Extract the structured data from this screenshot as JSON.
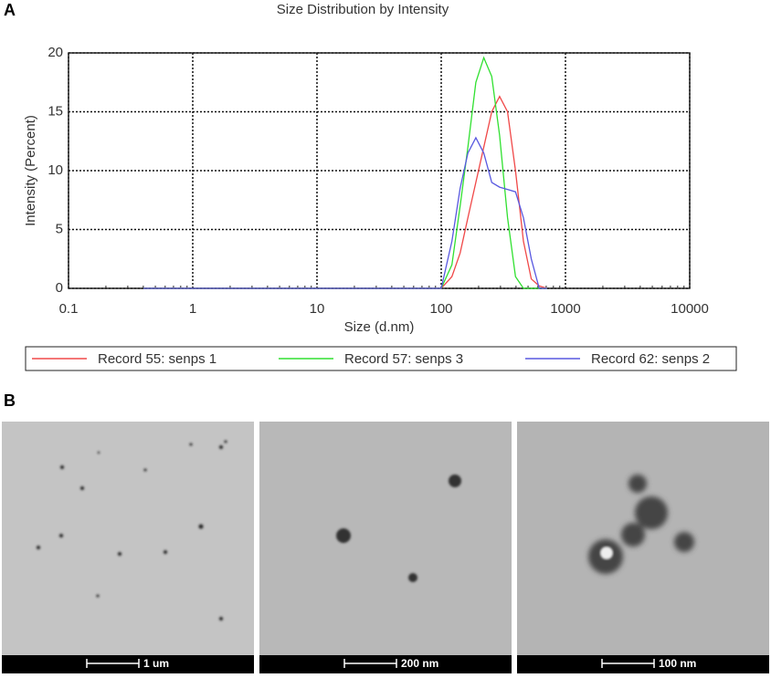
{
  "panel_labels": [
    "A",
    "B"
  ],
  "chart_data": {
    "type": "line",
    "title": "Size Distribution by Intensity",
    "x_label": "Size (d.nm)",
    "y_label": "Intensity (Percent)",
    "x": [
      0.4,
      100,
      122,
      142,
      164,
      190,
      220,
      255,
      295,
      342,
      396,
      459,
      531,
      615,
      712
    ],
    "series": [
      {
        "name": "Record 55: senps 1",
        "color": "#f04848",
        "values": [
          0,
          0,
          1,
          3,
          6,
          9,
          12,
          15,
          16.3,
          15,
          10,
          4,
          0.8,
          0.2,
          0
        ]
      },
      {
        "name": "Record 57: senps 3",
        "color": "#30e030",
        "values": [
          0,
          0,
          2,
          7,
          12,
          17.5,
          19.6,
          18,
          13,
          6,
          1,
          0,
          0,
          0,
          0
        ]
      },
      {
        "name": "Record 62: senps 2",
        "color": "#5858e0",
        "values": [
          0,
          0,
          4,
          8.5,
          11.5,
          12.8,
          11.5,
          9,
          8.6,
          8.4,
          8.2,
          6,
          2.5,
          0,
          0
        ]
      }
    ],
    "xlim": [
      0.1,
      10000
    ],
    "xticks": [
      0.1,
      1,
      10,
      100,
      1000,
      10000
    ],
    "log_x": true,
    "ylim": [
      0,
      20
    ],
    "yticks": [
      0,
      5,
      10,
      15,
      20
    ],
    "grid": true
  },
  "micrographs": {
    "scale_bars": [
      "1 um",
      "200 nm",
      "100 nm"
    ]
  }
}
